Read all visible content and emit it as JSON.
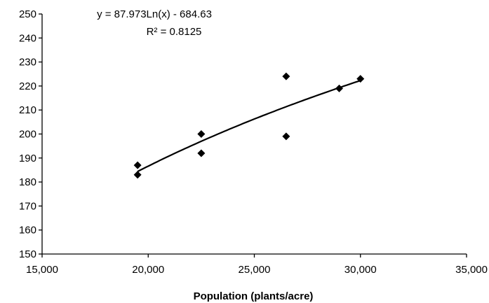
{
  "chart_data": {
    "type": "scatter",
    "title": "",
    "xlabel": "Population (plants/acre)",
    "ylabel": "",
    "xlim": [
      15000,
      35000
    ],
    "ylim": [
      150,
      250
    ],
    "x_ticks": [
      15000,
      20000,
      25000,
      30000,
      35000
    ],
    "x_tick_labels": [
      "15,000",
      "20,000",
      "25,000",
      "30,000",
      "35,000"
    ],
    "y_ticks": [
      150,
      160,
      170,
      180,
      190,
      200,
      210,
      220,
      230,
      240,
      250
    ],
    "y_tick_labels": [
      "150",
      "160",
      "170",
      "180",
      "190",
      "200",
      "210",
      "220",
      "230",
      "240",
      "250"
    ],
    "grid": false,
    "legend": "none",
    "marker": "diamond",
    "points": [
      {
        "x": 19500,
        "y": 187
      },
      {
        "x": 19500,
        "y": 183
      },
      {
        "x": 22500,
        "y": 200
      },
      {
        "x": 22500,
        "y": 192
      },
      {
        "x": 26500,
        "y": 224
      },
      {
        "x": 26500,
        "y": 199
      },
      {
        "x": 29000,
        "y": 219
      },
      {
        "x": 30000,
        "y": 223
      }
    ],
    "trendline": {
      "type": "logarithmic",
      "a": 87.973,
      "b": -684.63,
      "x_range": [
        19500,
        30000
      ]
    },
    "annotations": {
      "equation": "y = 87.973Ln(x) - 684.63",
      "r_squared": "R² = 0.8125"
    },
    "colors": {
      "marker": "#000000",
      "trendline": "#000000",
      "axis": "#000000"
    }
  }
}
